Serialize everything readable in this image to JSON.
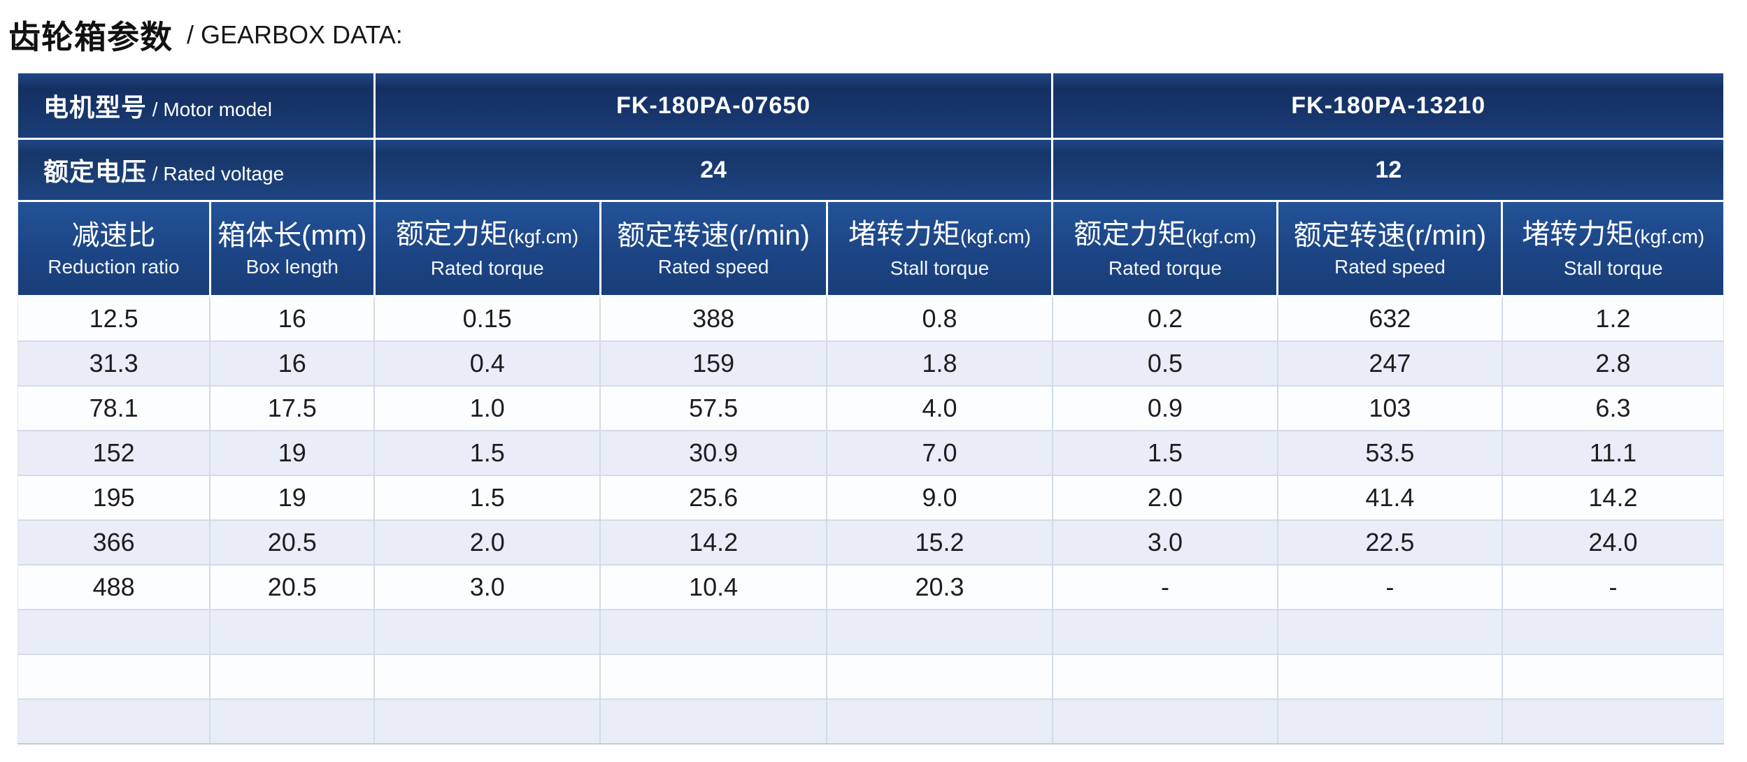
{
  "title": {
    "cn": "齿轮箱参数",
    "en": " / GEARBOX DATA:"
  },
  "table": {
    "header": {
      "motor_model": {
        "cn": "电机型号",
        "en": " / Motor model"
      },
      "rated_voltage": {
        "cn": "额定电压",
        "en": " / Rated voltage"
      },
      "models": [
        "FK-180PA-07650",
        "FK-180PA-13210"
      ],
      "voltages": [
        "24",
        "12"
      ],
      "columns": [
        {
          "cn": "减速比",
          "unit": "",
          "unit_small": false,
          "en": "Reduction ratio"
        },
        {
          "cn": "箱体长",
          "unit": "(mm)",
          "unit_small": false,
          "en": "Box length"
        },
        {
          "cn": "额定力矩",
          "unit": "(kgf.cm)",
          "unit_small": true,
          "en": "Rated torque"
        },
        {
          "cn": "额定转速",
          "unit": "(r/min)",
          "unit_small": false,
          "en": "Rated speed"
        },
        {
          "cn": "堵转力矩",
          "unit": "(kgf.cm)",
          "unit_small": true,
          "en": "Stall torque"
        },
        {
          "cn": "额定力矩",
          "unit": "(kgf.cm)",
          "unit_small": true,
          "en": "Rated torque"
        },
        {
          "cn": "额定转速",
          "unit": "(r/min)",
          "unit_small": false,
          "en": "Rated speed"
        },
        {
          "cn": "堵转力矩",
          "unit": "(kgf.cm)",
          "unit_small": true,
          "en": "Stall torque"
        }
      ]
    },
    "rows": [
      [
        "12.5",
        "16",
        "0.15",
        "388",
        "0.8",
        "0.2",
        "632",
        "1.2"
      ],
      [
        "31.3",
        "16",
        "0.4",
        "159",
        "1.8",
        "0.5",
        "247",
        "2.8"
      ],
      [
        "78.1",
        "17.5",
        "1.0",
        "57.5",
        "4.0",
        "0.9",
        "103",
        "6.3"
      ],
      [
        "152",
        "19",
        "1.5",
        "30.9",
        "7.0",
        "1.5",
        "53.5",
        "11.1"
      ],
      [
        "195",
        "19",
        "1.5",
        "25.6",
        "9.0",
        "2.0",
        "41.4",
        "14.2"
      ],
      [
        "366",
        "20.5",
        "2.0",
        "14.2",
        "15.2",
        "3.0",
        "22.5",
        "24.0"
      ],
      [
        "488",
        "20.5",
        "3.0",
        "10.4",
        "20.3",
        "-",
        "-",
        "-"
      ]
    ],
    "trailing_empty_rows": 3
  },
  "colors": {
    "header_navy_dark": "#152f62",
    "header_navy": "#1d4583",
    "header_blue": "#1c4484",
    "row_white": "#fcfdfe",
    "row_alt_blue": "#e8edf7",
    "grid_line": "#d3dbe9",
    "header_text": "#ffffff",
    "body_text": "#1d1d1f"
  }
}
